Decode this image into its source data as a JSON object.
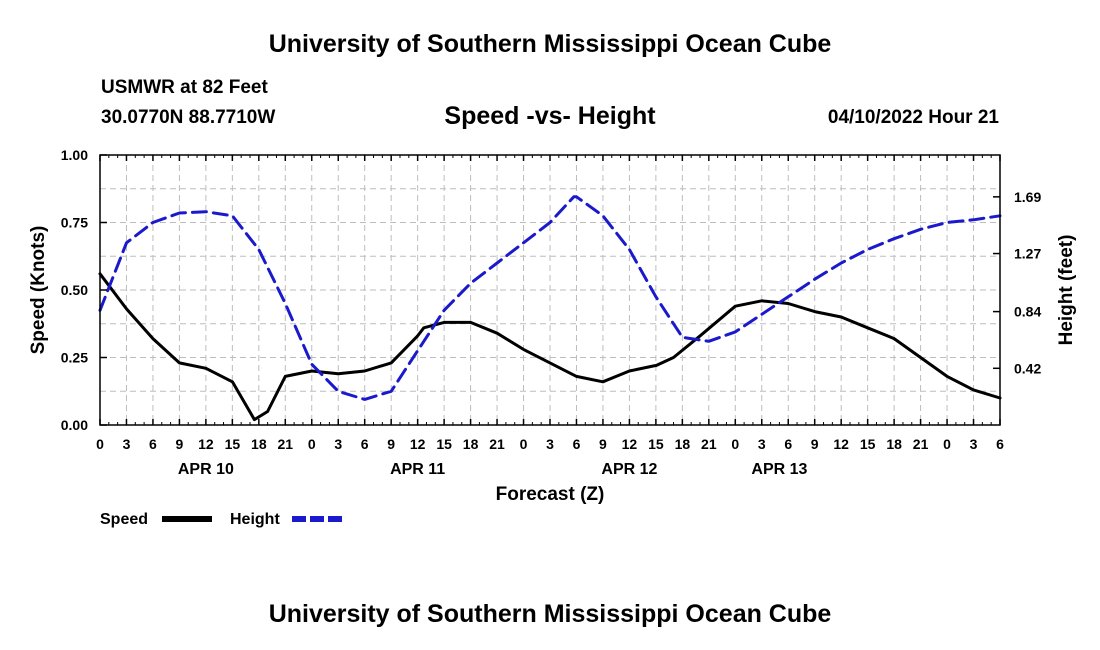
{
  "header": {
    "title": "University of Southern Mississippi Ocean Cube",
    "station": "USMWR at 82 Feet",
    "coords": "30.0770N  88.7710W",
    "datetime": "04/10/2022 Hour 21",
    "footer_title": "University of Southern Mississippi Ocean Cube"
  },
  "colors": {
    "speed": "#000000",
    "height": "#1a1acc",
    "grid": "#bdbdbd"
  },
  "chart_data": {
    "type": "line",
    "title": "Speed -vs- Height",
    "xlabel": "Forecast (Z)",
    "ylabel": "Speed (Knots)",
    "y2label": "Height (feet)",
    "xlim": [
      0,
      102
    ],
    "ylim": [
      0,
      1.0
    ],
    "y2lim": [
      0.0,
      2.0
    ],
    "x_ticks": [
      0,
      3,
      6,
      9,
      12,
      15,
      18,
      21,
      24,
      27,
      30,
      33,
      36,
      39,
      42,
      45,
      48,
      51,
      54,
      57,
      60,
      63,
      66,
      69,
      72,
      75,
      78,
      81,
      84,
      87,
      90,
      93,
      96,
      99,
      102
    ],
    "x_tick_labels": [
      "0",
      "3",
      "6",
      "9",
      "12",
      "15",
      "18",
      "21",
      "0",
      "3",
      "6",
      "9",
      "12",
      "15",
      "18",
      "21",
      "0",
      "3",
      "6",
      "9",
      "12",
      "15",
      "18",
      "21",
      "0",
      "3",
      "6",
      "9",
      "12",
      "15",
      "18",
      "21",
      "0",
      "3",
      "6"
    ],
    "day_labels": [
      {
        "x": 12,
        "label": "APR 10"
      },
      {
        "x": 36,
        "label": "APR 11"
      },
      {
        "x": 60,
        "label": "APR 12"
      },
      {
        "x": 77,
        "label": "APR 13"
      }
    ],
    "y_ticks": [
      0.0,
      0.25,
      0.5,
      0.75,
      1.0
    ],
    "y_tick_labels": [
      "0.00",
      "0.25",
      "0.50",
      "0.75",
      "1.00"
    ],
    "y2_ticks": [
      0.42,
      0.84,
      1.27,
      1.69
    ],
    "y2_tick_labels": [
      "0.42",
      "0.84",
      "1.27",
      "1.69"
    ],
    "grid": true,
    "legend": "bottom-left",
    "series": [
      {
        "name": "Speed",
        "axis": "left",
        "style": "solid",
        "x": [
          0,
          3,
          6,
          9,
          12,
          15,
          17.5,
          19,
          21,
          24,
          27,
          30,
          33,
          36,
          36.7,
          39,
          42,
          45,
          48,
          51,
          54,
          57,
          60,
          62.9,
          63,
          65,
          68,
          72,
          75,
          78,
          81,
          84,
          87,
          90,
          93,
          96,
          99,
          102
        ],
        "y": [
          0.56,
          0.43,
          0.32,
          0.23,
          0.21,
          0.16,
          0.02,
          0.05,
          0.18,
          0.2,
          0.19,
          0.2,
          0.23,
          0.33,
          0.36,
          0.38,
          0.38,
          0.34,
          0.28,
          0.23,
          0.18,
          0.16,
          0.2,
          0.22,
          0.22,
          0.25,
          0.33,
          0.44,
          0.46,
          0.45,
          0.42,
          0.4,
          0.36,
          0.32,
          0.25,
          0.18,
          0.13,
          0.1
        ]
      },
      {
        "name": "Height",
        "axis": "right",
        "style": "dashed",
        "x": [
          0,
          3,
          6,
          9,
          12,
          15,
          18,
          21,
          24,
          27,
          30,
          33,
          36,
          39,
          42,
          45,
          48,
          51,
          53.7,
          54,
          57,
          60,
          63,
          66,
          69,
          72,
          75,
          78,
          81,
          84,
          87,
          90,
          93,
          96,
          99,
          102
        ],
        "y": [
          0.85,
          1.35,
          1.5,
          1.57,
          1.58,
          1.55,
          1.3,
          0.9,
          0.45,
          0.25,
          0.19,
          0.25,
          0.55,
          0.85,
          1.05,
          1.2,
          1.35,
          1.5,
          1.69,
          1.69,
          1.55,
          1.3,
          0.95,
          0.65,
          0.62,
          0.69,
          0.82,
          0.95,
          1.08,
          1.2,
          1.3,
          1.38,
          1.45,
          1.5,
          1.52,
          1.55
        ]
      }
    ]
  }
}
